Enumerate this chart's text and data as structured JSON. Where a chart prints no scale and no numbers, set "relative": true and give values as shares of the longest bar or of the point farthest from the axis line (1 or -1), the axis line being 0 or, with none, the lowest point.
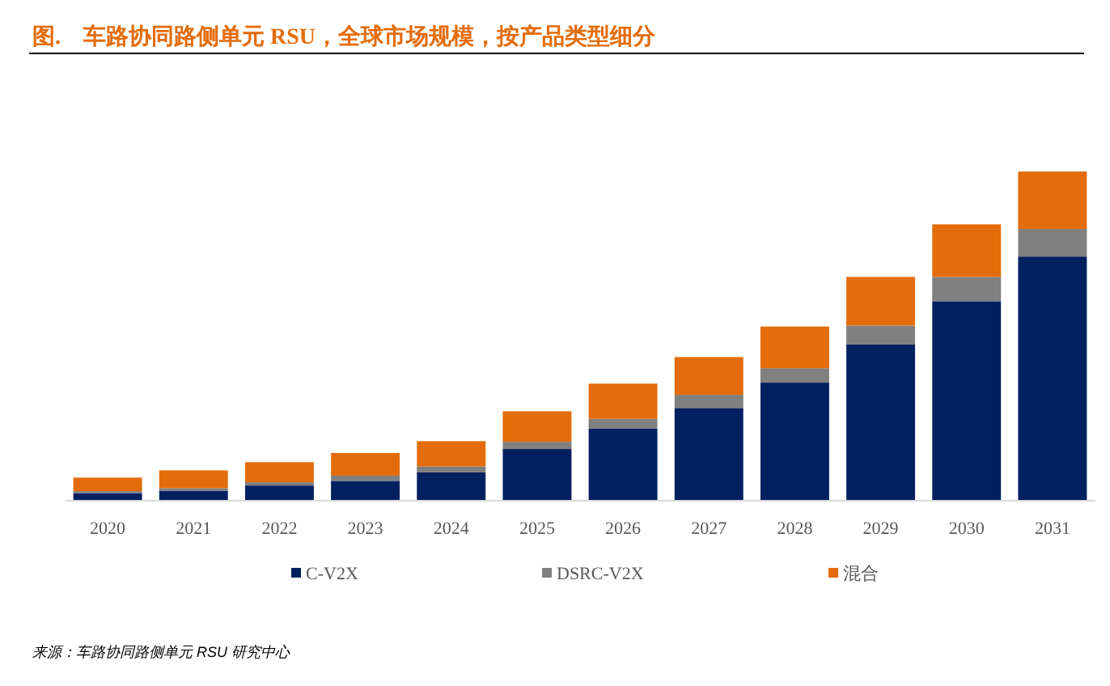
{
  "chart_data": {
    "type": "bar",
    "title": "图.    车路协同路侧单元 RSU，全球市场规模，按产品类型细分",
    "relative": true,
    "stacked": true,
    "legend": "bottom",
    "categories": [
      "2020",
      "2021",
      "2022",
      "2023",
      "2024",
      "2025",
      "2026",
      "2027",
      "2028",
      "2029",
      "2030",
      "2031"
    ],
    "series": [
      {
        "name": "C-V2X",
        "color": "#002060",
        "values": [
          0.02,
          0.028,
          0.044,
          0.058,
          0.084,
          0.155,
          0.217,
          0.28,
          0.357,
          0.473,
          0.605,
          0.741
        ]
      },
      {
        "name": "DSRC-V2X",
        "color": "#808080",
        "values": [
          0.007,
          0.008,
          0.01,
          0.016,
          0.018,
          0.022,
          0.03,
          0.04,
          0.044,
          0.058,
          0.074,
          0.084
        ]
      },
      {
        "name": "混合",
        "color": "#e46c0a",
        "values": [
          0.041,
          0.054,
          0.061,
          0.069,
          0.077,
          0.093,
          0.107,
          0.115,
          0.127,
          0.148,
          0.16,
          0.175
        ]
      }
    ],
    "annotations": [
      "来源：车路协同路侧单元 RSU 研究中心"
    ]
  }
}
